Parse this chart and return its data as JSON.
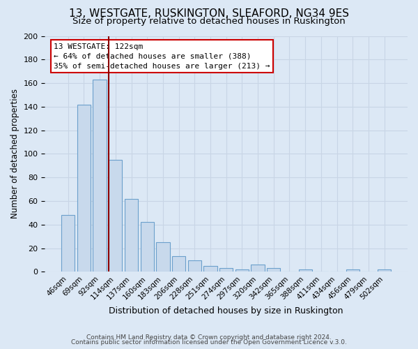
{
  "title": "13, WESTGATE, RUSKINGTON, SLEAFORD, NG34 9ES",
  "subtitle": "Size of property relative to detached houses in Ruskington",
  "xlabel": "Distribution of detached houses by size in Ruskington",
  "ylabel": "Number of detached properties",
  "bar_labels": [
    "46sqm",
    "69sqm",
    "92sqm",
    "114sqm",
    "137sqm",
    "160sqm",
    "183sqm",
    "206sqm",
    "228sqm",
    "251sqm",
    "274sqm",
    "297sqm",
    "320sqm",
    "342sqm",
    "365sqm",
    "388sqm",
    "411sqm",
    "434sqm",
    "456sqm",
    "479sqm",
    "502sqm"
  ],
  "bar_values": [
    48,
    142,
    163,
    95,
    62,
    42,
    25,
    13,
    10,
    5,
    3,
    2,
    6,
    3,
    0,
    2,
    0,
    0,
    2,
    0,
    2
  ],
  "bar_color": "#c8d9ec",
  "bar_edge_color": "#6ca0cc",
  "ylim": [
    0,
    200
  ],
  "yticks": [
    0,
    20,
    40,
    60,
    80,
    100,
    120,
    140,
    160,
    180,
    200
  ],
  "vline_index": 3,
  "vline_color": "#8b0000",
  "annotation_title": "13 WESTGATE: 122sqm",
  "annotation_line1": "← 64% of detached houses are smaller (388)",
  "annotation_line2": "35% of semi-detached houses are larger (213) →",
  "footer1": "Contains HM Land Registry data © Crown copyright and database right 2024.",
  "footer2": "Contains public sector information licensed under the Open Government Licence v.3.0.",
  "bg_color": "#dce8f5",
  "plot_bg_color": "#dce8f5",
  "grid_color": "#c0d0e8",
  "title_fontsize": 11,
  "subtitle_fontsize": 9.5
}
